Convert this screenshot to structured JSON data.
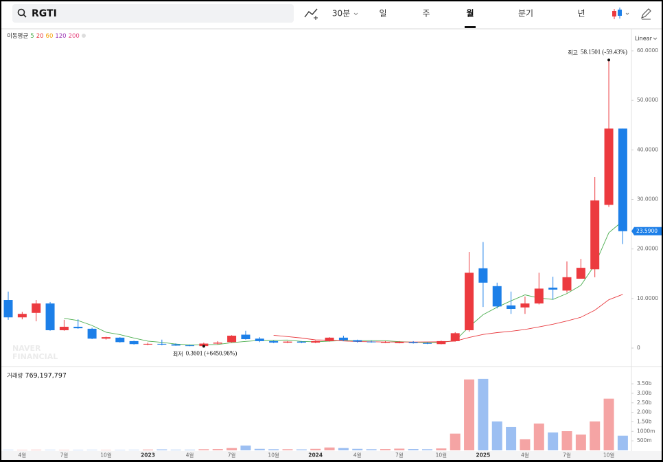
{
  "toolbar": {
    "symbol": "RGTI",
    "intervals": [
      "30분",
      "일",
      "주",
      "월",
      "분기",
      "년"
    ],
    "active": "월"
  },
  "chart_data": {
    "type": "candlestick",
    "scale": "Linear",
    "categories": [
      null,
      "4월",
      null,
      null,
      "7월",
      null,
      null,
      "10월",
      null,
      null,
      "2023",
      null,
      null,
      "4월",
      null,
      null,
      "7월",
      null,
      null,
      "10월",
      null,
      null,
      "2024",
      null,
      null,
      "4월",
      null,
      null,
      "7월",
      null,
      null,
      "10월",
      null,
      null,
      "2025",
      null,
      null,
      "4월",
      null,
      null,
      "7월",
      null,
      null,
      "10월",
      null
    ],
    "open": [
      9.7,
      6.2,
      7.1,
      9.0,
      3.6,
      4.3,
      3.9,
      1.9,
      2.1,
      1.4,
      0.7,
      0.85,
      0.75,
      0.55,
      0.4,
      0.9,
      1.2,
      2.7,
      1.9,
      1.4,
      1.1,
      1.3,
      1.1,
      1.4,
      2.1,
      1.6,
      1.3,
      1.1,
      1.0,
      1.2,
      1.0,
      0.8,
      1.4,
      3.6,
      16.1,
      12.5,
      8.6,
      8.2,
      9.0,
      12.2,
      11.6,
      14.0,
      15.9,
      28.9,
      44.3
    ],
    "high": [
      11.4,
      7.3,
      9.7,
      9.3,
      5.7,
      5.8,
      4.1,
      2.3,
      2.2,
      1.5,
      1.1,
      1.7,
      0.95,
      0.7,
      1.1,
      1.4,
      2.6,
      3.5,
      2.2,
      1.5,
      1.4,
      1.4,
      1.5,
      2.2,
      2.5,
      1.7,
      1.5,
      1.4,
      1.4,
      1.4,
      1.2,
      1.5,
      3.2,
      19.4,
      21.4,
      13.2,
      11.4,
      10.4,
      15.2,
      14.4,
      17.5,
      18.0,
      34.5,
      58.1501,
      44.3
    ],
    "low": [
      5.7,
      5.8,
      5.4,
      3.5,
      3.5,
      3.9,
      1.8,
      1.7,
      1.1,
      0.7,
      0.55,
      0.55,
      0.45,
      0.38,
      0.3601,
      0.7,
      1.1,
      1.7,
      1.2,
      1.0,
      1.0,
      1.0,
      1.0,
      1.3,
      1.4,
      1.1,
      1.1,
      1.0,
      0.95,
      0.9,
      0.8,
      0.75,
      1.3,
      3.3,
      8.3,
      8.0,
      6.9,
      6.9,
      8.8,
      9.8,
      11.2,
      14.0,
      14.3,
      28.5,
      21.0
    ],
    "close": [
      6.2,
      6.9,
      9.0,
      3.6,
      4.3,
      4.0,
      1.9,
      2.2,
      1.2,
      0.8,
      0.85,
      0.7,
      0.5,
      0.4,
      0.9,
      1.1,
      2.5,
      1.8,
      1.4,
      1.1,
      1.3,
      1.1,
      1.4,
      2.1,
      1.6,
      1.3,
      1.2,
      1.2,
      1.2,
      1.0,
      0.9,
      1.4,
      3.0,
      15.2,
      13.2,
      8.4,
      7.9,
      9.0,
      12.0,
      11.8,
      14.3,
      16.2,
      29.8,
      44.3,
      23.59
    ],
    "last_label": "23.5900",
    "up_color": "#ec3a3f",
    "down_color": "#1c7fe8",
    "ylim": [
      -3.6,
      64.3
    ],
    "yticks": [
      0,
      {
        "value": 10,
        "label": "10.0000"
      },
      {
        "value": 20,
        "label": "20.0000"
      },
      {
        "value": 30,
        "label": "30.0000"
      },
      {
        "value": 40,
        "label": "40.0000"
      },
      {
        "value": 50,
        "label": "50.0000"
      },
      {
        "value": 60,
        "label": "60.0000"
      }
    ],
    "annotations": {
      "high": {
        "label": "최고",
        "change": "(-59.43%)"
      },
      "low": {
        "label": "최저",
        "change": "(+6450.96%)"
      }
    },
    "moving_average": {
      "title": "이동평균",
      "lines": [
        {
          "name": "5",
          "color": "#4cae4f",
          "values": [
            null,
            null,
            null,
            null,
            6.0,
            5.56,
            4.56,
            3.2,
            2.72,
            2.02,
            1.39,
            1.15,
            0.81,
            0.65,
            0.67,
            0.72,
            1.08,
            1.34,
            1.54,
            1.58,
            1.62,
            1.34,
            1.26,
            1.4,
            1.5,
            1.5,
            1.52,
            1.48,
            1.3,
            1.18,
            1.1,
            1.14,
            1.5,
            4.3,
            6.74,
            8.24,
            9.54,
            10.74,
            10.1,
            9.82,
            11.0,
            12.66,
            16.82,
            23.28,
            25.64
          ]
        },
        {
          "name": "20",
          "color": "#e8383d",
          "values": [
            null,
            null,
            null,
            null,
            null,
            null,
            null,
            null,
            null,
            null,
            null,
            null,
            null,
            null,
            null,
            null,
            null,
            null,
            null,
            2.57,
            2.32,
            2.03,
            1.65,
            1.58,
            1.44,
            1.31,
            1.27,
            1.22,
            1.22,
            1.23,
            1.24,
            1.27,
            1.4,
            2.14,
            2.75,
            3.12,
            3.39,
            3.75,
            4.28,
            4.81,
            5.46,
            6.22,
            7.64,
            9.75,
            10.84
          ]
        },
        {
          "name": "60",
          "color": "#f59f00"
        },
        {
          "name": "120",
          "color": "#9c36b5"
        },
        {
          "name": "200",
          "color": "#e64980"
        }
      ]
    },
    "volume_title": "거래량",
    "volume_last_label": "769,197,797",
    "volume": [
      20000000,
      15000000,
      25000000,
      20000000,
      15000000,
      15000000,
      20000000,
      15000000,
      15000000,
      20000000,
      40000000,
      50000000,
      30000000,
      30000000,
      60000000,
      70000000,
      120000000,
      250000000,
      80000000,
      60000000,
      60000000,
      50000000,
      80000000,
      150000000,
      120000000,
      80000000,
      60000000,
      70000000,
      90000000,
      70000000,
      60000000,
      100000000,
      880000000,
      3730000000,
      3760000000,
      1520000000,
      1230000000,
      580000000,
      1410000000,
      940000000,
      1010000000,
      830000000,
      1520000000,
      2720000000,
      769197797
    ],
    "volume_up_color": "#f5a4a4",
    "volume_down_color": "#9cbff2",
    "vlim": [
      0,
      4370000000
    ],
    "vticks": [
      {
        "value": 500000000,
        "label": "500m"
      },
      {
        "value": 1000000000,
        "label": "1000m"
      },
      {
        "value": 1500000000,
        "label": "1.50b"
      },
      {
        "value": 2000000000,
        "label": "2.00b"
      },
      {
        "value": 2500000000,
        "label": "2.50b"
      },
      {
        "value": 3000000000,
        "label": "3.00b"
      },
      {
        "value": 3500000000,
        "label": "3.50b"
      }
    ],
    "watermark": [
      "NAVER",
      "FINANCIAL"
    ]
  }
}
